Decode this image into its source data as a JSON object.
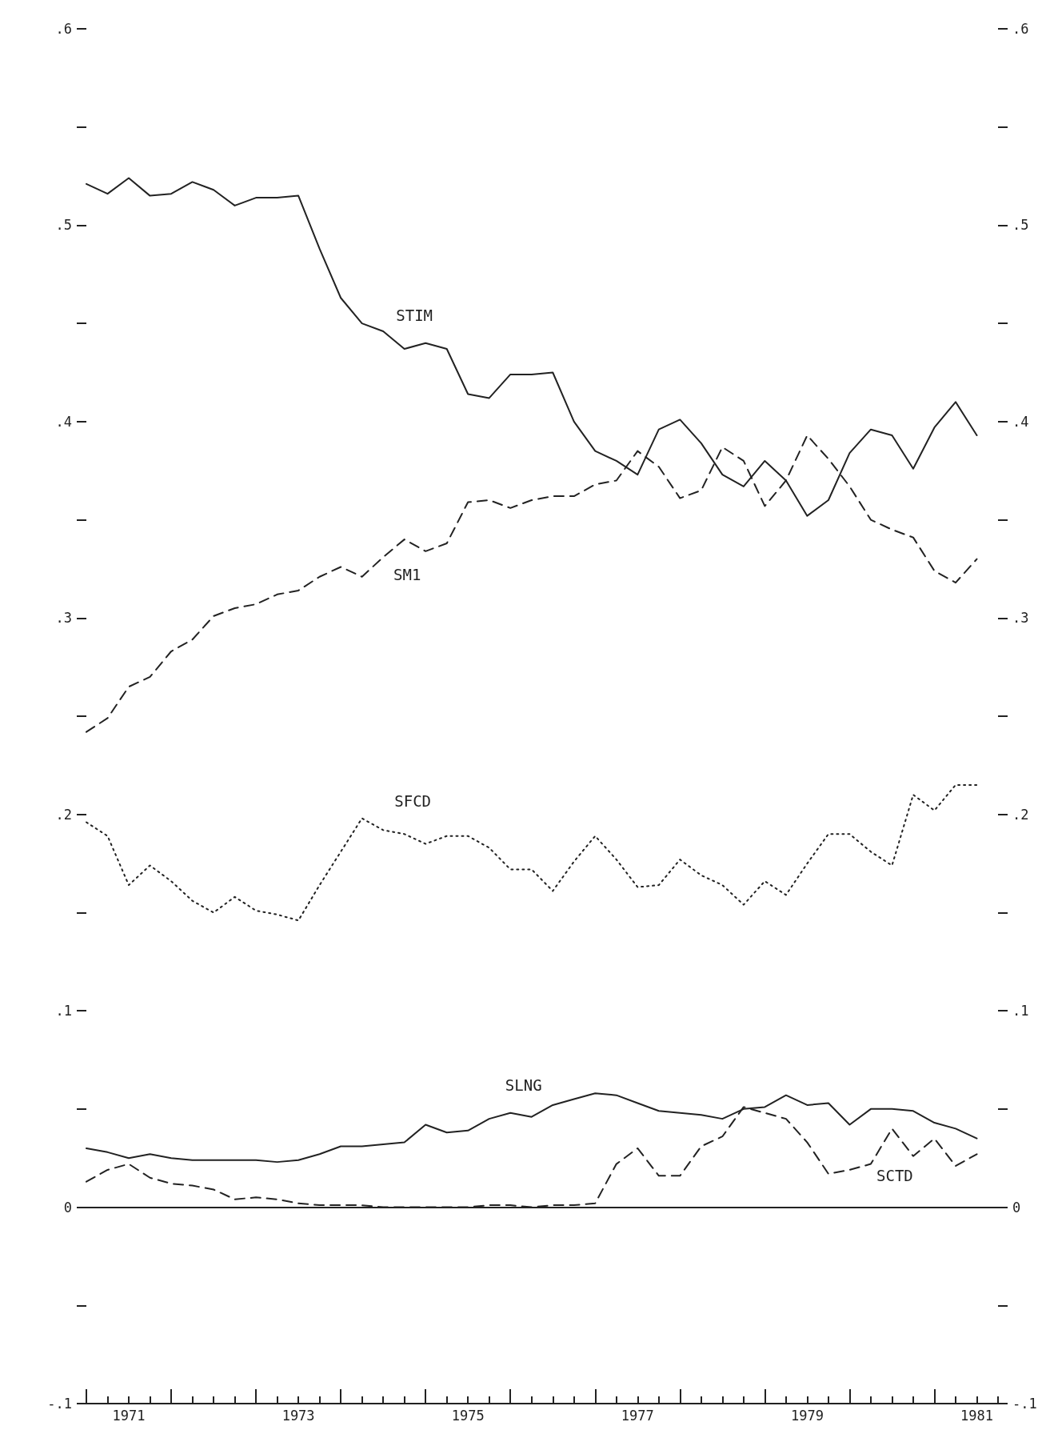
{
  "chart_data": {
    "type": "line",
    "x": [
      1971,
      1971.25,
      1971.5,
      1971.75,
      1972,
      1972.25,
      1972.5,
      1972.75,
      1973,
      1973.25,
      1973.5,
      1973.75,
      1974,
      1974.25,
      1974.5,
      1974.75,
      1975,
      1975.25,
      1975.5,
      1975.75,
      1976,
      1976.25,
      1976.5,
      1976.75,
      1977,
      1977.25,
      1977.5,
      1977.75,
      1978,
      1978.25,
      1978.5,
      1978.75,
      1979,
      1979.25,
      1979.5,
      1979.75,
      1980,
      1980.25,
      1980.5,
      1980.75,
      1981,
      1981.25,
      1981.5
    ],
    "series": [
      {
        "name": "STIM",
        "color": "#222222",
        "line_style": "solid",
        "values": [
          0.521,
          0.516,
          0.524,
          0.515,
          0.516,
          0.522,
          0.518,
          0.51,
          0.514,
          0.514,
          0.515,
          0.488,
          0.463,
          0.45,
          0.446,
          0.437,
          0.44,
          0.437,
          0.414,
          0.412,
          0.424,
          0.424,
          0.425,
          0.4,
          0.385,
          0.38,
          0.373,
          0.396,
          0.401,
          0.389,
          0.373,
          0.367,
          0.38,
          0.37,
          0.352,
          0.36,
          0.384,
          0.396,
          0.393,
          0.376,
          0.397,
          0.41,
          0.393
        ]
      },
      {
        "name": "SM1",
        "color": "#222222",
        "line_style": "dashed",
        "values": [
          0.242,
          0.249,
          0.265,
          0.27,
          0.283,
          0.289,
          0.301,
          0.305,
          0.307,
          0.312,
          0.314,
          0.321,
          0.326,
          0.321,
          0.331,
          0.34,
          0.334,
          0.338,
          0.359,
          0.36,
          0.356,
          0.36,
          0.362,
          0.362,
          0.368,
          0.37,
          0.385,
          0.377,
          0.361,
          0.365,
          0.387,
          0.38,
          0.357,
          0.37,
          0.393,
          0.381,
          0.367,
          0.35,
          0.345,
          0.341,
          0.324,
          0.318,
          0.33
        ]
      },
      {
        "name": "SFCD",
        "color": "#222222",
        "line_style": "dotted",
        "values": [
          0.196,
          0.189,
          0.164,
          0.174,
          0.166,
          0.156,
          0.15,
          0.158,
          0.151,
          0.149,
          0.146,
          0.164,
          0.181,
          0.198,
          0.192,
          0.19,
          0.185,
          0.189,
          0.189,
          0.183,
          0.172,
          0.172,
          0.161,
          0.176,
          0.189,
          0.177,
          0.163,
          0.164,
          0.177,
          0.169,
          0.164,
          0.154,
          0.166,
          0.159,
          0.175,
          0.19,
          0.19,
          0.181,
          0.174,
          0.21,
          0.202,
          0.215,
          0.215
        ]
      },
      {
        "name": "SLNG",
        "color": "#222222",
        "line_style": "solid",
        "values": [
          0.03,
          0.028,
          0.025,
          0.027,
          0.025,
          0.024,
          0.024,
          0.024,
          0.024,
          0.023,
          0.024,
          0.027,
          0.031,
          0.031,
          0.032,
          0.033,
          0.042,
          0.038,
          0.039,
          0.045,
          0.048,
          0.046,
          0.052,
          0.055,
          0.058,
          0.057,
          0.053,
          0.049,
          0.048,
          0.047,
          0.045,
          0.05,
          0.051,
          0.057,
          0.052,
          0.053,
          0.042,
          0.05,
          0.05,
          0.049,
          0.043,
          0.04,
          0.035
        ]
      },
      {
        "name": "SCTD",
        "color": "#222222",
        "line_style": "dashed",
        "values": [
          0.013,
          0.019,
          0.022,
          0.015,
          0.012,
          0.011,
          0.009,
          0.004,
          0.005,
          0.004,
          0.002,
          0.001,
          0.001,
          0.001,
          0.0,
          0.0,
          0.0,
          0.0,
          0.0,
          0.001,
          0.001,
          0.0,
          0.001,
          0.001,
          0.002,
          0.022,
          0.03,
          0.016,
          0.016,
          0.031,
          0.036,
          0.051,
          0.048,
          0.045,
          0.033,
          0.017,
          0.019,
          0.022,
          0.04,
          0.026,
          0.035,
          0.021,
          0.027
        ]
      }
    ],
    "xlim": [
      1971,
      1981.75
    ],
    "xticks": [
      {
        "value": 1971,
        "label": null
      },
      {
        "value": 1971.25,
        "label": null
      },
      {
        "value": 1971.5,
        "label": "1971"
      },
      {
        "value": 1971.75,
        "label": null
      },
      {
        "value": 1972,
        "label": null
      },
      {
        "value": 1972.25,
        "label": null
      },
      {
        "value": 1972.5,
        "label": null
      },
      {
        "value": 1972.75,
        "label": null
      },
      {
        "value": 1973,
        "label": null
      },
      {
        "value": 1973.25,
        "label": null
      },
      {
        "value": 1973.5,
        "label": "1973"
      },
      {
        "value": 1973.75,
        "label": null
      },
      {
        "value": 1974,
        "label": null
      },
      {
        "value": 1974.25,
        "label": null
      },
      {
        "value": 1974.5,
        "label": null
      },
      {
        "value": 1974.75,
        "label": null
      },
      {
        "value": 1975,
        "label": null
      },
      {
        "value": 1975.25,
        "label": null
      },
      {
        "value": 1975.5,
        "label": "1975"
      },
      {
        "value": 1975.75,
        "label": null
      },
      {
        "value": 1976,
        "label": null
      },
      {
        "value": 1976.25,
        "label": null
      },
      {
        "value": 1976.5,
        "label": null
      },
      {
        "value": 1976.75,
        "label": null
      },
      {
        "value": 1977,
        "label": null
      },
      {
        "value": 1977.25,
        "label": null
      },
      {
        "value": 1977.5,
        "label": "1977"
      },
      {
        "value": 1977.75,
        "label": null
      },
      {
        "value": 1978,
        "label": null
      },
      {
        "value": 1978.25,
        "label": null
      },
      {
        "value": 1978.5,
        "label": null
      },
      {
        "value": 1978.75,
        "label": null
      },
      {
        "value": 1979,
        "label": null
      },
      {
        "value": 1979.25,
        "label": null
      },
      {
        "value": 1979.5,
        "label": "1979"
      },
      {
        "value": 1979.75,
        "label": null
      },
      {
        "value": 1980,
        "label": null
      },
      {
        "value": 1980.25,
        "label": null
      },
      {
        "value": 1980.5,
        "label": null
      },
      {
        "value": 1980.75,
        "label": null
      },
      {
        "value": 1981,
        "label": null
      },
      {
        "value": 1981.25,
        "label": null
      },
      {
        "value": 1981.5,
        "label": "1981"
      },
      {
        "value": 1981.75,
        "label": null
      }
    ],
    "ylim": [
      -0.1,
      0.6
    ],
    "yticks": [
      {
        "value": -0.1,
        "label": "-.1"
      },
      {
        "value": -0.05,
        "label": null
      },
      {
        "value": 0,
        "label": "0"
      },
      {
        "value": 0.05,
        "label": null
      },
      {
        "value": 0.1,
        "label": ".1"
      },
      {
        "value": 0.15,
        "label": null
      },
      {
        "value": 0.2,
        "label": ".2"
      },
      {
        "value": 0.25,
        "label": null
      },
      {
        "value": 0.3,
        "label": ".3"
      },
      {
        "value": 0.35,
        "label": null
      },
      {
        "value": 0.4,
        "label": ".4"
      },
      {
        "value": 0.45,
        "label": null
      },
      {
        "value": 0.5,
        "label": ".5"
      },
      {
        "value": 0.55,
        "label": null
      },
      {
        "value": 0.6,
        "label": ".6"
      }
    ],
    "y2lim": [
      -0.1,
      0.6
    ],
    "y2ticks": [
      {
        "value": -0.1,
        "label": "-.1"
      },
      {
        "value": -0.05,
        "label": null
      },
      {
        "value": 0,
        "label": "0"
      },
      {
        "value": 0.05,
        "label": null
      },
      {
        "value": 0.1,
        "label": ".1"
      },
      {
        "value": 0.15,
        "label": null
      },
      {
        "value": 0.2,
        "label": ".2"
      },
      {
        "value": 0.25,
        "label": null
      },
      {
        "value": 0.3,
        "label": ".3"
      },
      {
        "value": 0.35,
        "label": null
      },
      {
        "value": 0.4,
        "label": ".4"
      },
      {
        "value": 0.45,
        "label": null
      },
      {
        "value": 0.5,
        "label": ".5"
      },
      {
        "value": 0.55,
        "label": null
      },
      {
        "value": 0.6,
        "label": ".6"
      }
    ],
    "ref_lines": [
      {
        "axis": "y",
        "value": 0,
        "color": "#222222",
        "line_style": "solid"
      }
    ],
    "grid": false,
    "legend": false
  }
}
